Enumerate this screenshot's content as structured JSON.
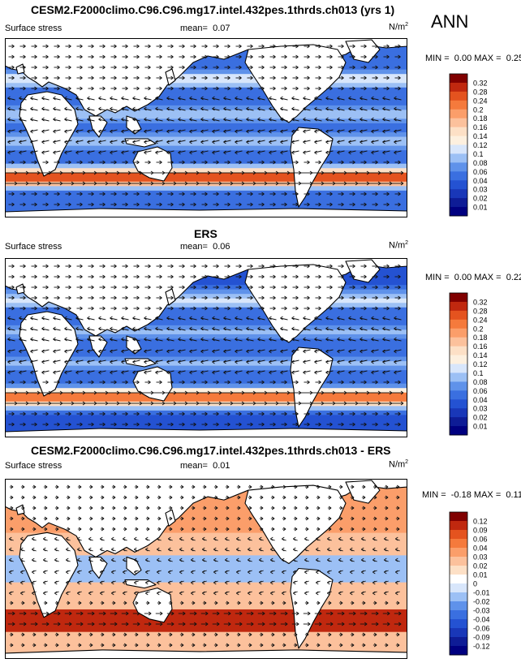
{
  "season": "ANN",
  "panels": [
    {
      "title": "CESM2.F2000climo.C96.C96.mg17.intel.432pes.1thrds.ch013 (yrs 1)",
      "left_label": "Surface stress",
      "mean_label": "mean=",
      "mean_value": "0.07",
      "units": "N/m",
      "units_sup": "2",
      "min_label": "MIN =",
      "min_value": "0.00",
      "max_label": "MAX =",
      "max_value": "0.25",
      "colorbar": [
        "0.32",
        "0.28",
        "0.24",
        "0.2",
        "0.18",
        "0.16",
        "0.14",
        "0.12",
        "0.1",
        "0.08",
        "0.06",
        "0.04",
        "0.03",
        "0.02",
        "0.01"
      ]
    },
    {
      "title": "ERS",
      "left_label": "Surface stress",
      "mean_label": "mean=",
      "mean_value": "0.06",
      "units": "N/m",
      "units_sup": "2",
      "min_label": "MIN =",
      "min_value": "0.00",
      "max_label": "MAX =",
      "max_value": "0.22",
      "colorbar": [
        "0.32",
        "0.28",
        "0.24",
        "0.2",
        "0.18",
        "0.16",
        "0.14",
        "0.12",
        "0.1",
        "0.08",
        "0.06",
        "0.04",
        "0.03",
        "0.02",
        "0.01"
      ]
    },
    {
      "title": "CESM2.F2000climo.C96.C96.mg17.intel.432pes.1thrds.ch013 - ERS",
      "left_label": "Surface stress",
      "mean_label": "mean=",
      "mean_value": "0.01",
      "units": "N/m",
      "units_sup": "2",
      "min_label": "MIN =",
      "min_value": "-0.18",
      "max_label": "MAX =",
      "max_value": "0.11",
      "colorbar": [
        "0.12",
        "0.09",
        "0.06",
        "0.04",
        "0.03",
        "0.02",
        "0.01",
        "0",
        "-0.01",
        "-0.02",
        "-0.03",
        "-0.04",
        "-0.06",
        "-0.09",
        "-0.12"
      ]
    }
  ],
  "colors": {
    "abs_scale": [
      "#800000",
      "#c0280f",
      "#e4531f",
      "#f57a3c",
      "#fb9e6a",
      "#fcc19c",
      "#fde0c6",
      "#fdf0df",
      "#d8e6fb",
      "#9cc0f5",
      "#5f92ea",
      "#3a6fe0",
      "#2452d2",
      "#1937b8",
      "#0e1c96",
      "#000080"
    ],
    "diff_scale": [
      "#800000",
      "#c0280f",
      "#e4531f",
      "#f57a3c",
      "#fb9e6a",
      "#fcc19c",
      "#fde0c6",
      "#ffffff",
      "#d8e6fb",
      "#9cc0f5",
      "#5f92ea",
      "#3a6fe0",
      "#2452d2",
      "#1937b8",
      "#0e1c96",
      "#000080"
    ]
  }
}
